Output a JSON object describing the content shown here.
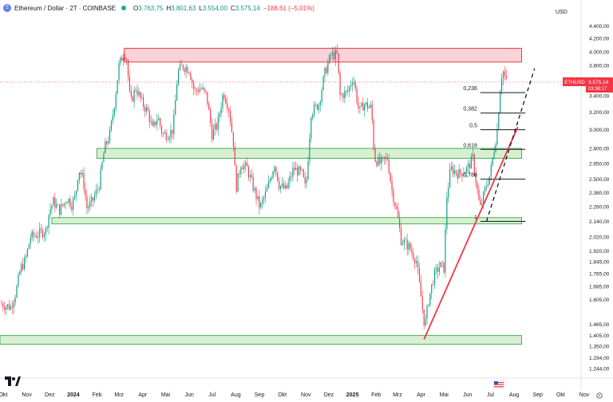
{
  "header": {
    "icon": "ethereum-icon",
    "symbol_title": "Ethereum / Dollar · 2T · COINBASE",
    "status_color": "#26a69a",
    "open_label": "O",
    "open_value": "3.763,75",
    "high_label": "H",
    "high_value": "3.801,63",
    "low_label": "L",
    "low_value": "3.554,00",
    "close_label": "C",
    "close_value": "3.575,14",
    "change": "−188,61 (−5,01%)"
  },
  "currency": "USD",
  "price_tag": {
    "symbol": "ETHUSD",
    "value": "3.575,14",
    "countdown": "03:38:17",
    "color": "#f23645"
  },
  "colors": {
    "up": "#089981",
    "down": "#f23645",
    "support_zone_fill": "#d7f0d3",
    "support_zone_border": "#4caf50",
    "resistance_zone_fill": "#f8d3d7",
    "resistance_zone_border": "#f23645",
    "trendline": "#f23645",
    "projection": "#131722",
    "fib_line": "#131722"
  },
  "chart_data": {
    "type": "candlestick",
    "x_axis_labels": [
      "Okt",
      "Nov",
      "Dez",
      "2024",
      "Feb",
      "Mrz",
      "Apr",
      "Mai",
      "Jun",
      "Jul",
      "Aug",
      "Sep",
      "Okt",
      "Nov",
      "Dez",
      "2025",
      "Feb",
      "Mrz",
      "Apr",
      "Mai",
      "Jun",
      "Jul",
      "Aug",
      "Sep",
      "Okt",
      "Nov"
    ],
    "y_axis_labels": [
      "4.400,00",
      "4.200,00",
      "4.000,00",
      "3.800,00",
      "3.600,00",
      "3.400,00",
      "3.200,00",
      "3.000,00",
      "2.800,00",
      "2.650,00",
      "2.500,00",
      "2.380,00",
      "2.260,00",
      "2.140,00",
      "2.020,00",
      "1.920,00",
      "1.845,00",
      "1.765,00",
      "1.685,00",
      "1.605,00",
      "1.465,00",
      "1.405,00",
      "1.350,00",
      "1.294,00",
      "1.244,00"
    ],
    "y_scale": "log",
    "x_range": [
      "2023-10-01",
      "2025-11-01"
    ],
    "y_range": [
      1215,
      4590
    ],
    "price_path": [
      [
        "2023-10-01",
        1580
      ],
      [
        "2023-10-15",
        1560
      ],
      [
        "2023-10-22",
        1650
      ],
      [
        "2023-10-28",
        1800
      ],
      [
        "2023-11-03",
        1850
      ],
      [
        "2023-11-10",
        2020
      ],
      [
        "2023-11-20",
        2040
      ],
      [
        "2023-11-30",
        2070
      ],
      [
        "2023-12-05",
        2230
      ],
      [
        "2023-12-10",
        2300
      ],
      [
        "2023-12-18",
        2230
      ],
      [
        "2023-12-28",
        2330
      ],
      [
        "2024-01-03",
        2280
      ],
      [
        "2024-01-08",
        2350
      ],
      [
        "2024-01-12",
        2600
      ],
      [
        "2024-01-18",
        2500
      ],
      [
        "2024-01-23",
        2250
      ],
      [
        "2024-01-30",
        2300
      ],
      [
        "2024-02-08",
        2450
      ],
      [
        "2024-02-15",
        2800
      ],
      [
        "2024-02-22",
        2950
      ],
      [
        "2024-02-28",
        3300
      ],
      [
        "2024-03-05",
        3800
      ],
      [
        "2024-03-12",
        4000
      ],
      [
        "2024-03-15",
        3900
      ],
      [
        "2024-03-20",
        3300
      ],
      [
        "2024-03-27",
        3500
      ],
      [
        "2024-04-05",
        3300
      ],
      [
        "2024-04-12",
        3200
      ],
      [
        "2024-04-18",
        3000
      ],
      [
        "2024-04-25",
        3150
      ],
      [
        "2024-05-01",
        2950
      ],
      [
        "2024-05-08",
        2950
      ],
      [
        "2024-05-15",
        3000
      ],
      [
        "2024-05-21",
        3700
      ],
      [
        "2024-05-27",
        3800
      ],
      [
        "2024-06-05",
        3750
      ],
      [
        "2024-06-12",
        3450
      ],
      [
        "2024-06-20",
        3500
      ],
      [
        "2024-06-28",
        3400
      ],
      [
        "2024-07-05",
        2950
      ],
      [
        "2024-07-12",
        3050
      ],
      [
        "2024-07-20",
        3450
      ],
      [
        "2024-07-27",
        3250
      ],
      [
        "2024-08-03",
        2800
      ],
      [
        "2024-08-05",
        2400
      ],
      [
        "2024-08-12",
        2650
      ],
      [
        "2024-08-20",
        2600
      ],
      [
        "2024-08-27",
        2450
      ],
      [
        "2024-09-06",
        2250
      ],
      [
        "2024-09-15",
        2400
      ],
      [
        "2024-09-25",
        2650
      ],
      [
        "2024-10-01",
        2450
      ],
      [
        "2024-10-10",
        2400
      ],
      [
        "2024-10-20",
        2600
      ],
      [
        "2024-10-31",
        2550
      ],
      [
        "2024-11-05",
        2400
      ],
      [
        "2024-11-12",
        3200
      ],
      [
        "2024-11-22",
        3300
      ],
      [
        "2024-11-30",
        3700
      ],
      [
        "2024-12-08",
        3950
      ],
      [
        "2024-12-16",
        3950
      ],
      [
        "2024-12-20",
        3400
      ],
      [
        "2024-12-30",
        3450
      ],
      [
        "2025-01-06",
        3650
      ],
      [
        "2025-01-14",
        3200
      ],
      [
        "2025-01-20",
        3300
      ],
      [
        "2025-01-30",
        3250
      ],
      [
        "2025-02-03",
        2700
      ],
      [
        "2025-02-10",
        2650
      ],
      [
        "2025-02-20",
        2700
      ],
      [
        "2025-02-26",
        2400
      ],
      [
        "2025-03-05",
        2200
      ],
      [
        "2025-03-10",
        2000
      ],
      [
        "2025-03-20",
        1950
      ],
      [
        "2025-03-30",
        1850
      ],
      [
        "2025-04-07",
        1550
      ],
      [
        "2025-04-10",
        1450
      ],
      [
        "2025-04-15",
        1600
      ],
      [
        "2025-04-22",
        1750
      ],
      [
        "2025-04-30",
        1820
      ],
      [
        "2025-05-05",
        1800
      ],
      [
        "2025-05-09",
        2350
      ],
      [
        "2025-05-14",
        2600
      ],
      [
        "2025-05-25",
        2550
      ],
      [
        "2025-06-05",
        2600
      ],
      [
        "2025-06-12",
        2700
      ],
      [
        "2025-06-20",
        2300
      ],
      [
        "2025-06-22",
        2250
      ],
      [
        "2025-06-30",
        2450
      ],
      [
        "2025-07-05",
        2550
      ],
      [
        "2025-07-10",
        2800
      ],
      [
        "2025-07-14",
        3000
      ],
      [
        "2025-07-18",
        3500
      ],
      [
        "2025-07-21",
        3750
      ],
      [
        "2025-07-24",
        3650
      ],
      [
        "2025-07-26",
        3575
      ]
    ],
    "fibonacci": {
      "start_date": "2025-06-22",
      "end_date": "2025-08-20",
      "levels": [
        {
          "label": "0,236",
          "price": 3440
        },
        {
          "label": "0,382",
          "price": 3190
        },
        {
          "label": "0,5",
          "price": 3000
        },
        {
          "label": "0,618",
          "price": 2790
        },
        {
          "label": "0,786",
          "price": 2500
        },
        {
          "label": "1",
          "price": 2140
        }
      ]
    },
    "zones": [
      {
        "kind": "resistance",
        "from": "2024-03-12",
        "to": "2025-08-15",
        "low": 3850,
        "high": 4050
      },
      {
        "kind": "support",
        "from": "2024-02-05",
        "to": "2025-08-15",
        "low": 2700,
        "high": 2800
      },
      {
        "kind": "support",
        "from": "2023-12-08",
        "to": "2025-08-15",
        "low": 2120,
        "high": 2170
      },
      {
        "kind": "support",
        "from": "2023-09-20",
        "to": "2025-08-15",
        "low": 1360,
        "high": 1405
      }
    ],
    "trendline": {
      "start": [
        "2025-04-09",
        1385
      ],
      "end": [
        "2025-08-10",
        3030
      ]
    },
    "projection": {
      "start": [
        "2025-06-30",
        2140
      ],
      "end": [
        "2025-09-01",
        3760
      ]
    },
    "last_price": 3575.14
  }
}
